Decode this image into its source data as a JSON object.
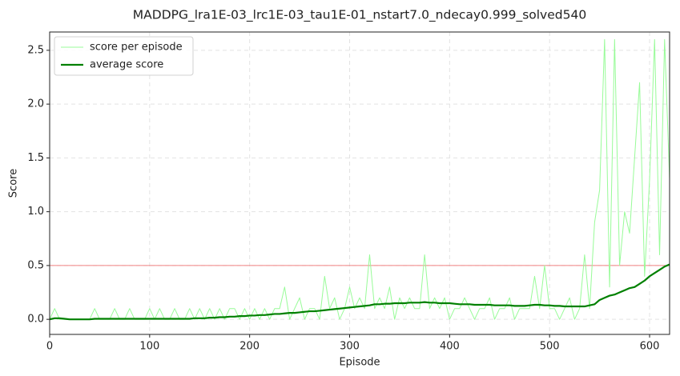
{
  "chart_data": {
    "type": "line",
    "title": "MADDPG_lra1E-03_lrc1E-03_tau1E-01_nstart7.0_ndecay0.999_solved540",
    "x_label": "Episode",
    "y_label": "Score",
    "x": [
      0,
      5,
      10,
      15,
      20,
      25,
      30,
      35,
      40,
      45,
      50,
      55,
      60,
      65,
      70,
      75,
      80,
      85,
      90,
      95,
      100,
      105,
      110,
      115,
      120,
      125,
      130,
      135,
      140,
      145,
      150,
      155,
      160,
      165,
      170,
      175,
      180,
      185,
      190,
      195,
      200,
      205,
      210,
      215,
      220,
      225,
      230,
      235,
      240,
      245,
      250,
      255,
      260,
      265,
      270,
      275,
      280,
      285,
      290,
      295,
      300,
      305,
      310,
      315,
      320,
      325,
      330,
      335,
      340,
      345,
      350,
      355,
      360,
      365,
      370,
      375,
      380,
      385,
      390,
      395,
      400,
      405,
      410,
      415,
      420,
      425,
      430,
      435,
      440,
      445,
      450,
      455,
      460,
      465,
      470,
      475,
      480,
      485,
      490,
      495,
      500,
      505,
      510,
      515,
      520,
      525,
      530,
      535,
      540,
      545,
      550,
      555,
      560,
      565,
      570,
      575,
      580,
      585,
      590,
      595,
      600,
      605,
      610,
      615,
      620
    ],
    "series": [
      {
        "name": "score per episode",
        "color": "#98fb98",
        "width": 1,
        "values": [
          0,
          0.1,
          0,
          0,
          0,
          0,
          0,
          0,
          0,
          0.1,
          0,
          0,
          0,
          0.1,
          0,
          0,
          0.1,
          0,
          0,
          0,
          0.1,
          0,
          0.1,
          0,
          0,
          0.1,
          0,
          0,
          0.1,
          0,
          0.1,
          0,
          0.1,
          0,
          0.1,
          0,
          0.1,
          0.1,
          0,
          0.1,
          0,
          0.1,
          0,
          0.1,
          0,
          0.1,
          0.1,
          0.3,
          0,
          0.1,
          0.2,
          0,
          0.1,
          0.1,
          0,
          0.4,
          0.1,
          0.2,
          0,
          0.1,
          0.3,
          0.1,
          0.2,
          0.1,
          0.6,
          0.1,
          0.2,
          0.1,
          0.3,
          0,
          0.2,
          0.1,
          0.2,
          0.1,
          0.1,
          0.6,
          0.1,
          0.2,
          0.1,
          0.2,
          0,
          0.1,
          0.1,
          0.2,
          0.1,
          0,
          0.1,
          0.1,
          0.2,
          0,
          0.1,
          0.1,
          0.2,
          0,
          0.1,
          0.1,
          0.1,
          0.4,
          0.1,
          0.5,
          0.1,
          0.1,
          0,
          0.1,
          0.2,
          0,
          0.1,
          0.6,
          0.1,
          0.9,
          1.2,
          2.6,
          0.3,
          2.6,
          0.5,
          1.0,
          0.8,
          1.5,
          2.2,
          0.4,
          1.3,
          2.6,
          0.6,
          2.6,
          1.3
        ]
      },
      {
        "name": "average score",
        "color": "#008000",
        "width": 2.2,
        "values": [
          0,
          0.01,
          0.01,
          0.005,
          0,
          0,
          0,
          0,
          0,
          0.005,
          0.005,
          0.005,
          0.005,
          0.005,
          0.005,
          0.005,
          0.005,
          0.005,
          0.005,
          0.005,
          0.005,
          0.005,
          0.005,
          0.005,
          0.005,
          0.005,
          0.005,
          0.005,
          0.005,
          0.01,
          0.01,
          0.01,
          0.015,
          0.015,
          0.02,
          0.02,
          0.025,
          0.025,
          0.03,
          0.03,
          0.035,
          0.035,
          0.04,
          0.04,
          0.045,
          0.05,
          0.05,
          0.055,
          0.06,
          0.06,
          0.065,
          0.07,
          0.075,
          0.075,
          0.08,
          0.085,
          0.09,
          0.095,
          0.1,
          0.105,
          0.11,
          0.115,
          0.12,
          0.125,
          0.13,
          0.14,
          0.14,
          0.145,
          0.145,
          0.15,
          0.15,
          0.15,
          0.155,
          0.155,
          0.155,
          0.16,
          0.155,
          0.155,
          0.15,
          0.15,
          0.15,
          0.145,
          0.14,
          0.14,
          0.14,
          0.135,
          0.135,
          0.135,
          0.135,
          0.13,
          0.13,
          0.13,
          0.13,
          0.125,
          0.125,
          0.125,
          0.13,
          0.135,
          0.135,
          0.13,
          0.13,
          0.125,
          0.125,
          0.12,
          0.12,
          0.12,
          0.12,
          0.12,
          0.13,
          0.14,
          0.18,
          0.2,
          0.22,
          0.23,
          0.25,
          0.27,
          0.29,
          0.3,
          0.33,
          0.36,
          0.4,
          0.43,
          0.46,
          0.49,
          0.51
        ]
      }
    ],
    "hline": {
      "value": 0.5,
      "color": "#f08080"
    },
    "xlim": [
      0,
      620
    ],
    "ylim": [
      -0.14,
      2.67
    ],
    "xticks": [
      0,
      100,
      200,
      300,
      400,
      500,
      600
    ],
    "yticks": [
      {
        "value": 0,
        "label": "0.0"
      },
      0.5,
      {
        "value": 1,
        "label": "1.0"
      },
      1.5,
      {
        "value": 2,
        "label": "2.0"
      },
      2.5
    ],
    "grid": true,
    "legend": "upper left"
  }
}
